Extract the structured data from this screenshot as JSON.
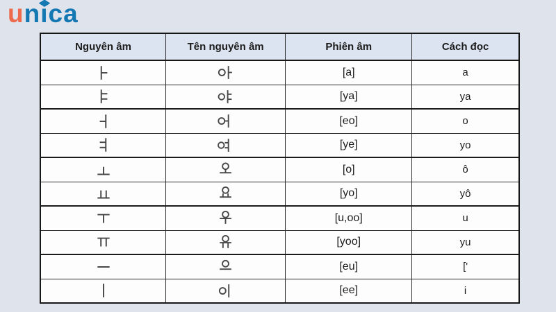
{
  "logo": {
    "text": "unica",
    "part_un": "un",
    "part_i": "ı",
    "part_ca": "ca",
    "color_u": "#ee6a4d",
    "color_blue": "#1478b3"
  },
  "table": {
    "headers": [
      "Nguyên âm",
      "Tên nguyên âm",
      "Phiên âm",
      "Cách đọc"
    ],
    "rows": [
      [
        "ㅏ",
        "아",
        "[a]",
        "a"
      ],
      [
        "ㅑ",
        "야",
        "[ya]",
        "ya"
      ],
      [
        "ㅓ",
        "어",
        "[eo]",
        "o"
      ],
      [
        "ㅕ",
        "여",
        "[ye]",
        "yo"
      ],
      [
        "ㅗ",
        "오",
        "[o]",
        "ô"
      ],
      [
        "ㅛ",
        "요",
        "[yo]",
        "yô"
      ],
      [
        "ㅜ",
        "우",
        "[u,oo]",
        "u"
      ],
      [
        "ㅠ",
        "유",
        "[yoo]",
        "yu"
      ],
      [
        "ㅡ",
        "으",
        "[eu]",
        "['"
      ],
      [
        "ㅣ",
        "이",
        "[ee]",
        "i"
      ]
    ]
  },
  "colors": {
    "page_bg": "#dfe3ec",
    "header_bg": "#dce4f1",
    "row_bg": "#fdfdfe",
    "border": "#1b1b1b",
    "glyph_stroke": "#474747"
  }
}
